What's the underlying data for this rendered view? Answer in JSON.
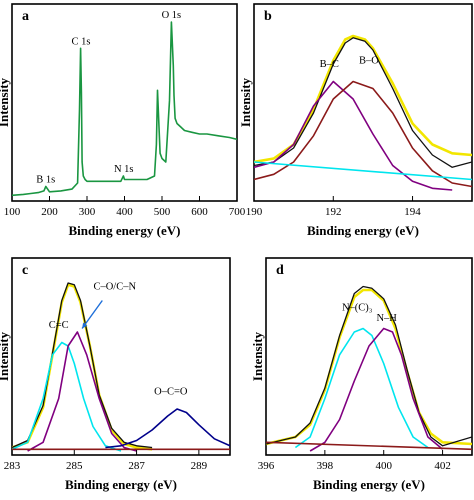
{
  "chart_data": [
    {
      "panel": "a",
      "type": "line",
      "xlabel": "Binding energy (eV)",
      "ylabel": "Intensity",
      "xlim": [
        100,
        700
      ],
      "xticks": [
        100,
        200,
        300,
        400,
        500,
        600,
        700
      ],
      "ylim": [
        0,
        1
      ],
      "series": [
        {
          "color": "#1a9641",
          "x": [
            100,
            130,
            150,
            170,
            185,
            190,
            200,
            230,
            260,
            275,
            280,
            283,
            285,
            287,
            290,
            295,
            300,
            330,
            360,
            390,
            397,
            400,
            405,
            430,
            460,
            480,
            485,
            488,
            492,
            495,
            500,
            510,
            520,
            525,
            530,
            532,
            535,
            540,
            550,
            560,
            580,
            600,
            620,
            650,
            680,
            700
          ],
          "y": [
            0.01,
            0.015,
            0.02,
            0.025,
            0.035,
            0.06,
            0.03,
            0.035,
            0.045,
            0.08,
            0.5,
            0.85,
            0.6,
            0.2,
            0.12,
            0.1,
            0.09,
            0.09,
            0.09,
            0.09,
            0.12,
            0.1,
            0.1,
            0.1,
            0.1,
            0.12,
            0.3,
            0.61,
            0.4,
            0.25,
            0.22,
            0.2,
            0.55,
            1.0,
            0.75,
            0.58,
            0.45,
            0.42,
            0.4,
            0.38,
            0.37,
            0.36,
            0.36,
            0.35,
            0.34,
            0.33
          ]
        }
      ],
      "annotations": [
        {
          "text": "B 1s",
          "x": 190,
          "y": 0.06
        },
        {
          "text": "C 1s",
          "x": 284,
          "y": 0.85
        },
        {
          "text": "N 1s",
          "x": 398,
          "y": 0.12
        },
        {
          "text": "O 1s",
          "x": 525,
          "y": 1.0
        }
      ]
    },
    {
      "panel": "b",
      "type": "line",
      "xlabel": "Binding energy (eV)",
      "ylabel": "Intensity",
      "xlim": [
        190,
        195.5
      ],
      "xticks": [
        190,
        192,
        194
      ],
      "ylim": [
        0,
        1
      ],
      "series": [
        {
          "color": "#f2e600",
          "role": "fit-envelope",
          "x": [
            190,
            190.5,
            191,
            191.5,
            192,
            192.3,
            192.5,
            192.8,
            193,
            193.5,
            194,
            194.5,
            195,
            195.5
          ],
          "y": [
            0.2,
            0.22,
            0.3,
            0.5,
            0.78,
            0.9,
            0.92,
            0.9,
            0.85,
            0.65,
            0.42,
            0.3,
            0.25,
            0.24
          ]
        },
        {
          "color": "#111111",
          "role": "raw",
          "x": [
            190,
            190.5,
            191,
            191.5,
            192,
            192.3,
            192.5,
            192.8,
            193,
            193.5,
            194,
            194.5,
            195,
            195.5
          ],
          "y": [
            0.18,
            0.2,
            0.28,
            0.48,
            0.76,
            0.88,
            0.91,
            0.89,
            0.84,
            0.62,
            0.38,
            0.24,
            0.17,
            0.2
          ]
        },
        {
          "color": "#800080",
          "name": "B–C",
          "x": [
            190,
            190.5,
            191,
            191.5,
            192,
            192.5,
            193,
            193.5,
            194,
            194.5,
            195
          ],
          "y": [
            0.17,
            0.2,
            0.3,
            0.52,
            0.66,
            0.56,
            0.36,
            0.18,
            0.09,
            0.05,
            0.04
          ]
        },
        {
          "color": "#8b1a1a",
          "name": "B–O",
          "x": [
            190,
            190.5,
            191,
            191.5,
            192,
            192.5,
            193,
            193.5,
            194,
            194.5,
            195,
            195.5
          ],
          "y": [
            0.1,
            0.13,
            0.2,
            0.35,
            0.56,
            0.66,
            0.62,
            0.48,
            0.28,
            0.15,
            0.08,
            0.06
          ]
        },
        {
          "color": "#00e5ee",
          "role": "background",
          "x": [
            190,
            195.5
          ],
          "y": [
            0.2,
            0.1
          ]
        }
      ],
      "annotations": [
        {
          "text": "B–C",
          "x": 191.9,
          "y": 0.72
        },
        {
          "text": "B–O",
          "x": 192.9,
          "y": 0.74
        }
      ]
    },
    {
      "panel": "c",
      "type": "line",
      "xlabel": "Binding energy (eV)",
      "ylabel": "Intensity",
      "xlim": [
        283,
        290
      ],
      "xticks": [
        283,
        285,
        287,
        289
      ],
      "ylim": [
        0,
        1
      ],
      "series": [
        {
          "color": "#f2e600",
          "role": "fit-envelope",
          "x": [
            283,
            283.5,
            284,
            284.3,
            284.6,
            284.8,
            285,
            285.2,
            285.5,
            285.8,
            286.2,
            286.6,
            287,
            287.5
          ],
          "y": [
            0.02,
            0.05,
            0.25,
            0.55,
            0.85,
            0.95,
            0.94,
            0.85,
            0.6,
            0.32,
            0.12,
            0.04,
            0.02,
            0.01
          ]
        },
        {
          "color": "#111111",
          "role": "raw",
          "x": [
            283,
            283.5,
            284,
            284.3,
            284.6,
            284.8,
            285,
            285.2,
            285.5,
            285.8,
            286.2,
            286.6,
            287,
            287.5
          ],
          "y": [
            0.02,
            0.06,
            0.26,
            0.56,
            0.86,
            0.96,
            0.95,
            0.86,
            0.6,
            0.32,
            0.13,
            0.05,
            0.03,
            0.02
          ]
        },
        {
          "color": "#00e5ee",
          "name": "C=C",
          "x": [
            283,
            283.5,
            284,
            284.3,
            284.6,
            284.8,
            285,
            285.3,
            285.6,
            286,
            286.5
          ],
          "y": [
            0.01,
            0.05,
            0.3,
            0.55,
            0.62,
            0.6,
            0.5,
            0.3,
            0.14,
            0.03,
            0.0
          ]
        },
        {
          "color": "#800080",
          "name": "C–O/C–N",
          "x": [
            283.5,
            284,
            284.5,
            284.8,
            285.1,
            285.4,
            285.8,
            286.2,
            286.6,
            287
          ],
          "y": [
            0.0,
            0.05,
            0.3,
            0.6,
            0.68,
            0.55,
            0.3,
            0.1,
            0.02,
            0.0
          ]
        },
        {
          "color": "#00008b",
          "name": "O–C=O",
          "x": [
            286,
            286.5,
            287,
            287.5,
            288,
            288.3,
            288.6,
            289,
            289.5,
            290
          ],
          "y": [
            0.02,
            0.03,
            0.06,
            0.12,
            0.2,
            0.24,
            0.22,
            0.15,
            0.07,
            0.03
          ]
        },
        {
          "color": "#8b1a1a",
          "role": "background",
          "x": [
            283,
            290
          ],
          "y": [
            0.01,
            0.01
          ]
        }
      ],
      "annotations": [
        {
          "text": "C=C",
          "x": 284.5,
          "y": 0.68
        },
        {
          "text": "C–O/C–N",
          "x": 286.3,
          "y": 0.9
        },
        {
          "text": "O–C=O",
          "x": 288.1,
          "y": 0.3
        }
      ]
    },
    {
      "panel": "d",
      "type": "line",
      "xlabel": "Binding energy (eV)",
      "ylabel": "Intensity",
      "xlim": [
        396,
        403
      ],
      "xticks": [
        396,
        398,
        400,
        402
      ],
      "ylim": [
        0,
        1
      ],
      "series": [
        {
          "color": "#f2e600",
          "role": "fit-envelope",
          "x": [
            396,
            397,
            397.5,
            398,
            398.5,
            399,
            399.3,
            399.6,
            400,
            400.4,
            400.8,
            401.2,
            401.6,
            402,
            403
          ],
          "y": [
            0.04,
            0.08,
            0.15,
            0.35,
            0.65,
            0.88,
            0.92,
            0.92,
            0.86,
            0.7,
            0.45,
            0.22,
            0.1,
            0.05,
            0.04
          ]
        },
        {
          "color": "#111111",
          "role": "raw",
          "x": [
            396,
            397,
            397.5,
            398,
            398.5,
            399,
            399.3,
            399.6,
            400,
            400.4,
            400.8,
            401.2,
            401.6,
            402,
            403
          ],
          "y": [
            0.04,
            0.08,
            0.16,
            0.36,
            0.66,
            0.9,
            0.94,
            0.93,
            0.87,
            0.72,
            0.46,
            0.22,
            0.08,
            0.03,
            0.08
          ]
        },
        {
          "color": "#00e5ee",
          "name": "N–(C)3",
          "x": [
            397,
            397.5,
            398,
            398.5,
            399,
            399.3,
            399.6,
            400,
            400.5,
            401,
            401.5
          ],
          "y": [
            0.02,
            0.08,
            0.3,
            0.55,
            0.68,
            0.7,
            0.66,
            0.5,
            0.25,
            0.08,
            0.02
          ]
        },
        {
          "color": "#800080",
          "name": "N–H",
          "x": [
            397.5,
            398,
            398.5,
            399,
            399.5,
            400,
            400.3,
            400.6,
            401,
            401.5,
            402
          ],
          "y": [
            0.0,
            0.05,
            0.18,
            0.4,
            0.6,
            0.7,
            0.68,
            0.55,
            0.3,
            0.08,
            0.01
          ]
        },
        {
          "color": "#8b1a1a",
          "role": "background",
          "x": [
            396,
            403
          ],
          "y": [
            0.05,
            0.01
          ]
        }
      ],
      "annotations": [
        {
          "text": "N–(C)₃",
          "x": 399.1,
          "y": 0.78
        },
        {
          "text": "N–H",
          "x": 400.1,
          "y": 0.72
        }
      ]
    }
  ]
}
